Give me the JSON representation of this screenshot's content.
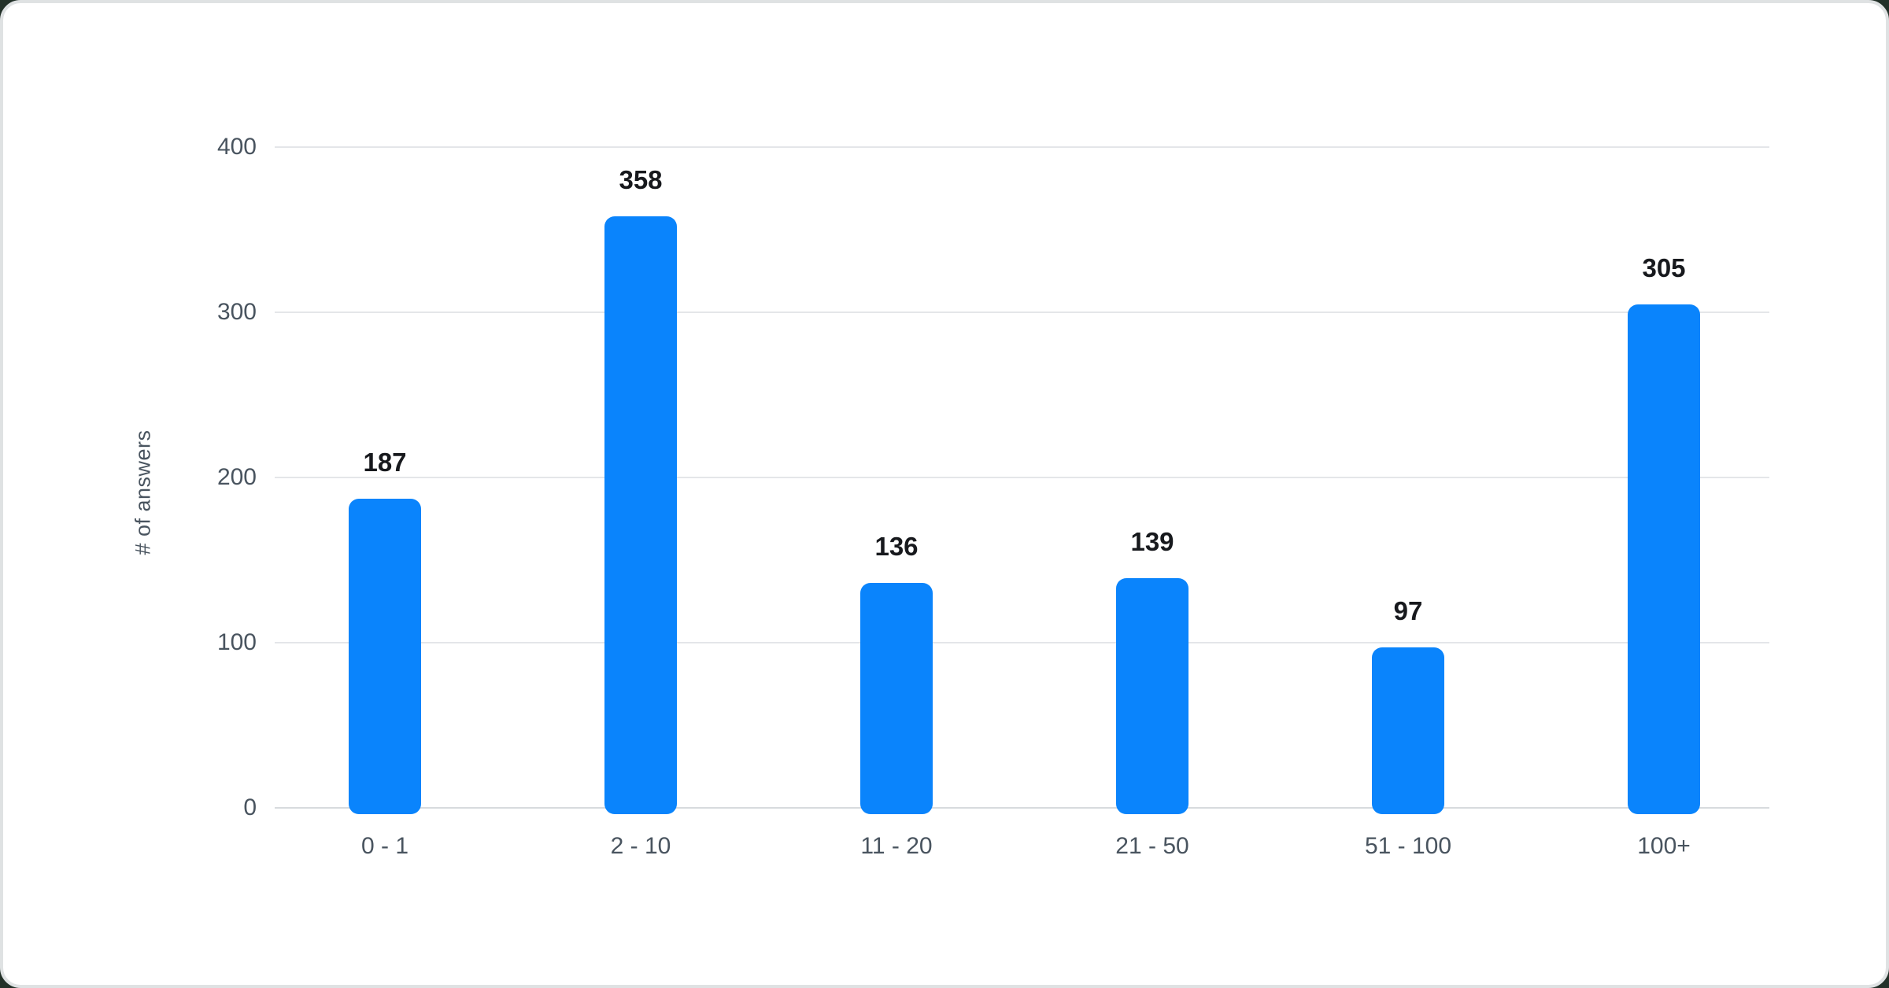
{
  "chart_data": {
    "type": "bar",
    "categories": [
      "0 - 1",
      "2 - 10",
      "11 - 20",
      "21 - 50",
      "51 - 100",
      "100+"
    ],
    "values": [
      187,
      358,
      136,
      139,
      97,
      305
    ],
    "title": "",
    "xlabel": "",
    "ylabel": "# of answers",
    "ylim": [
      0,
      400
    ],
    "yticks": [
      0,
      100,
      200,
      300,
      400
    ],
    "grid": "horizontal",
    "legend": "none",
    "bar_color": "#0a84fc",
    "value_label_color": "#17191d",
    "axis_text_color": "#49545f",
    "gridline_color": "#e4e6e9",
    "zero_line_color": "#d8dbde",
    "card_background": "#ffffff",
    "card_border_color": "#dfe2e3",
    "page_background": "#233129"
  }
}
